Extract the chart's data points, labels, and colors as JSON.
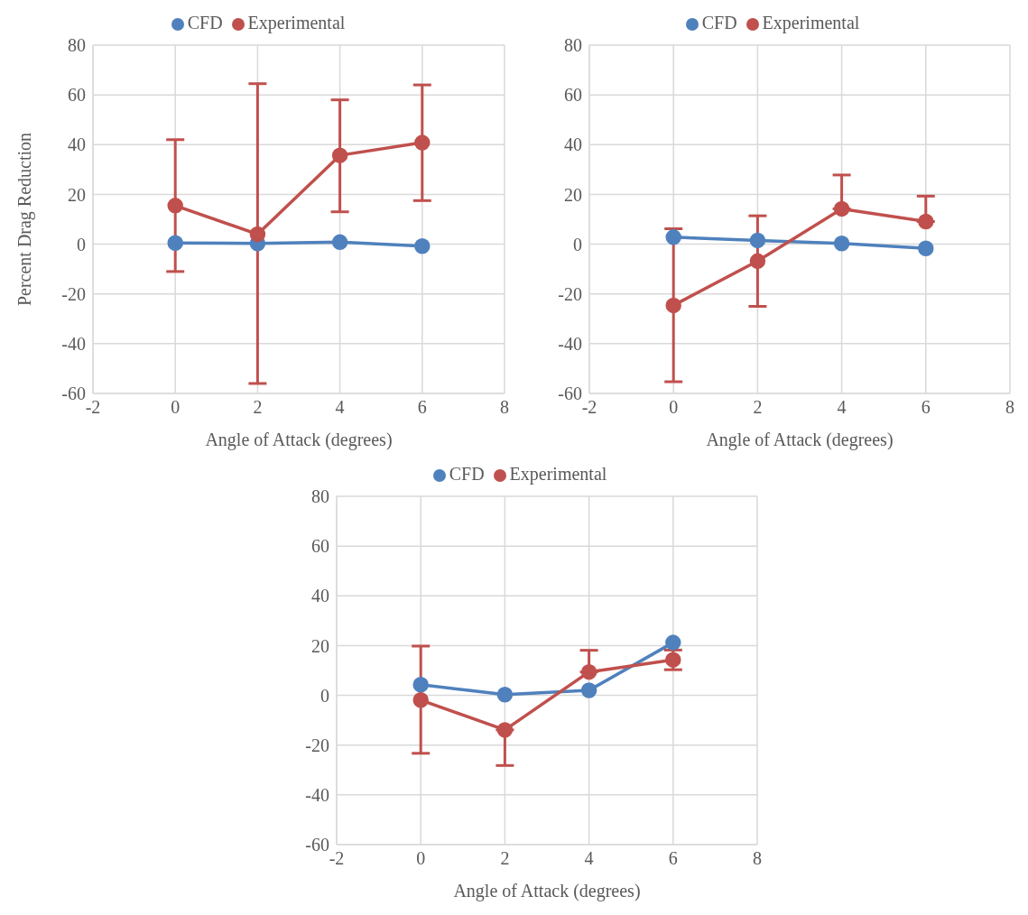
{
  "chart_data": [
    {
      "type": "line",
      "ylabel": "Percent Drag Reduction",
      "xlabel": "Angle of Attack (degrees)",
      "x": [
        0,
        2,
        4,
        6
      ],
      "xlim": [
        -2,
        8
      ],
      "xticks": [
        -2,
        0,
        2,
        4,
        6,
        8
      ],
      "ylim": [
        -60,
        80
      ],
      "yticks": [
        -60,
        -40,
        -20,
        0,
        20,
        40,
        60,
        80
      ],
      "grid": true,
      "legend": "top",
      "marker": "circle",
      "line_style": "solid",
      "series": [
        {
          "name": "CFD",
          "color": "#4f81bd",
          "values": [
            0.5,
            0.3,
            0.8,
            -0.8
          ]
        },
        {
          "name": "Experimental",
          "color": "#c0504d",
          "values": [
            15.5,
            4,
            35.7,
            40.8
          ],
          "errors": [
            [
              -11,
              42
            ],
            [
              -56,
              64.5
            ],
            [
              13,
              58
            ],
            [
              17.5,
              64
            ]
          ]
        }
      ]
    },
    {
      "type": "line",
      "xlabel": "Angle of Attack (degrees)",
      "x": [
        0,
        2,
        4,
        6
      ],
      "xlim": [
        -2,
        8
      ],
      "xticks": [
        -2,
        0,
        2,
        4,
        6,
        8
      ],
      "ylim": [
        -60,
        80
      ],
      "yticks": [
        -60,
        -40,
        -20,
        0,
        20,
        40,
        60,
        80
      ],
      "grid": true,
      "legend": "top",
      "marker": "circle",
      "line_style": "solid",
      "series": [
        {
          "name": "CFD",
          "color": "#4f81bd",
          "values": [
            2.8,
            1.5,
            0.3,
            -1.7
          ]
        },
        {
          "name": "Experimental",
          "color": "#c0504d",
          "values": [
            -24.6,
            -6.8,
            14.2,
            9.1
          ],
          "errors": [
            [
              -55.3,
              6.2
            ],
            [
              -25,
              11.4
            ],
            [
              14.2,
              27.8
            ],
            [
              9.1,
              19.3
            ]
          ]
        }
      ]
    },
    {
      "type": "line",
      "xlabel": "Angle of Attack (degrees)",
      "x": [
        0,
        2,
        4,
        6
      ],
      "xlim": [
        -2,
        8
      ],
      "xticks": [
        -2,
        0,
        2,
        4,
        6,
        8
      ],
      "ylim": [
        -60,
        80
      ],
      "yticks": [
        -60,
        -40,
        -20,
        0,
        20,
        40,
        60,
        80
      ],
      "grid": true,
      "legend": "top",
      "marker": "circle",
      "line_style": "solid",
      "series": [
        {
          "name": "CFD",
          "color": "#4f81bd",
          "values": [
            4.3,
            0.3,
            2,
            21.2
          ]
        },
        {
          "name": "Experimental",
          "color": "#c0504d",
          "values": [
            -1.9,
            -13.9,
            9.4,
            14.3
          ],
          "errors": [
            [
              -23.3,
              19.8
            ],
            [
              -28.2,
              -13.9
            ],
            [
              9.4,
              18.1
            ],
            [
              10.3,
              18.2
            ]
          ]
        }
      ]
    }
  ]
}
